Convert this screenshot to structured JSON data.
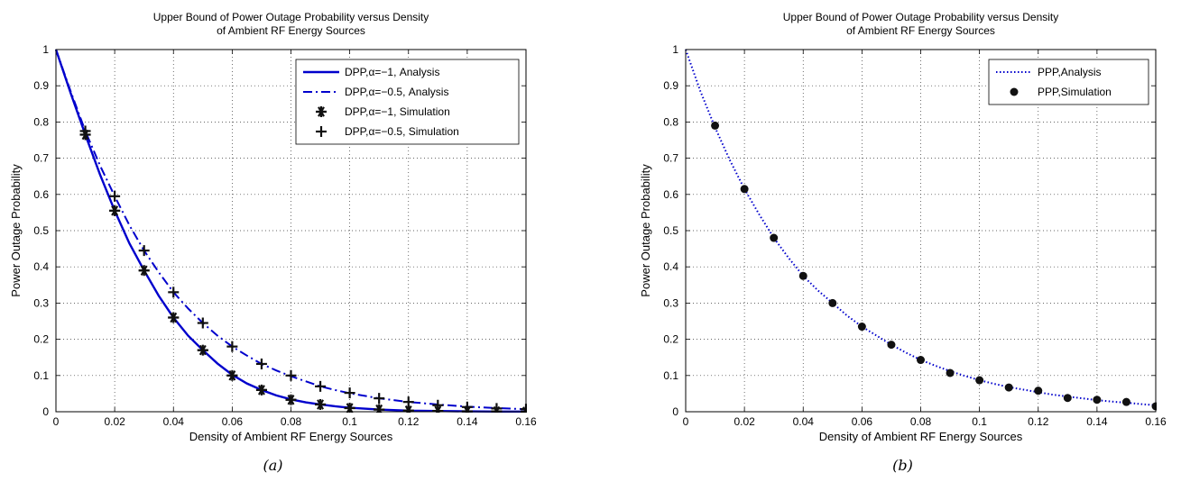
{
  "chart_data": [
    {
      "type": "line",
      "title_lines": [
        "Upper Bound of Power Outage Probability versus Density",
        "of Ambient RF Energy Sources"
      ],
      "xlabel": "Density of Ambient RF Energy Sources",
      "ylabel": "Power Outage Probability",
      "caption": "(a)",
      "xlim": [
        0,
        0.16
      ],
      "ylim": [
        0,
        1
      ],
      "xticks": [
        0,
        0.02,
        0.04,
        0.06,
        0.08,
        0.1,
        0.12,
        0.14,
        0.16
      ],
      "xtick_labels": [
        "0",
        "0.02",
        "0.04",
        "0.06",
        "0.08",
        "0.1",
        "0.12",
        "0.14",
        "0.16"
      ],
      "yticks": [
        0,
        0.1,
        0.2,
        0.3,
        0.4,
        0.5,
        0.6,
        0.7,
        0.8,
        0.9,
        1
      ],
      "ytick_labels": [
        "0",
        "0.1",
        "0.2",
        "0.3",
        "0.4",
        "0.5",
        "0.6",
        "0.7",
        "0.8",
        "0.9",
        "1"
      ],
      "grid": true,
      "legend_position": "top-right",
      "series": [
        {
          "name": "DPP,α=−1, Analysis",
          "style": "solid",
          "color": "#0000cc",
          "x": [
            0,
            0.005,
            0.01,
            0.015,
            0.02,
            0.025,
            0.03,
            0.035,
            0.04,
            0.045,
            0.05,
            0.055,
            0.06,
            0.065,
            0.07,
            0.075,
            0.08,
            0.085,
            0.09,
            0.095,
            0.1,
            0.11,
            0.12,
            0.13,
            0.14,
            0.15,
            0.16
          ],
          "y": [
            1,
            0.88,
            0.765,
            0.655,
            0.555,
            0.465,
            0.39,
            0.32,
            0.26,
            0.21,
            0.17,
            0.133,
            0.102,
            0.078,
            0.06,
            0.045,
            0.034,
            0.026,
            0.02,
            0.015,
            0.011,
            0.006,
            0.003,
            0.002,
            0.001,
            0.0005,
            0.0003
          ]
        },
        {
          "name": "DPP,α=−0.5, Analysis",
          "style": "dashdot",
          "color": "#0000cc",
          "x": [
            0,
            0.005,
            0.01,
            0.015,
            0.02,
            0.025,
            0.03,
            0.035,
            0.04,
            0.045,
            0.05,
            0.055,
            0.06,
            0.065,
            0.07,
            0.075,
            0.08,
            0.085,
            0.09,
            0.095,
            0.1,
            0.11,
            0.12,
            0.13,
            0.14,
            0.15,
            0.16
          ],
          "y": [
            1,
            0.885,
            0.775,
            0.68,
            0.595,
            0.515,
            0.445,
            0.385,
            0.33,
            0.285,
            0.245,
            0.21,
            0.18,
            0.155,
            0.132,
            0.114,
            0.098,
            0.084,
            0.07,
            0.06,
            0.051,
            0.037,
            0.027,
            0.02,
            0.014,
            0.01,
            0.007
          ]
        },
        {
          "name": "DPP,α=−1, Simulation",
          "style": "marker-asterisk",
          "color": "#111111",
          "x": [
            0.01,
            0.02,
            0.03,
            0.04,
            0.05,
            0.06,
            0.07,
            0.08,
            0.09,
            0.1,
            0.11,
            0.12,
            0.13,
            0.14,
            0.15,
            0.16
          ],
          "y": [
            0.765,
            0.555,
            0.39,
            0.26,
            0.17,
            0.1,
            0.06,
            0.033,
            0.02,
            0.01,
            0.006,
            0.003,
            0.002,
            0.001,
            0.001,
            0
          ]
        },
        {
          "name": "DPP,α=−0.5, Simulation",
          "style": "marker-plus",
          "color": "#111111",
          "x": [
            0.01,
            0.02,
            0.03,
            0.04,
            0.05,
            0.06,
            0.07,
            0.08,
            0.09,
            0.1,
            0.11,
            0.12,
            0.13,
            0.14,
            0.15,
            0.16
          ],
          "y": [
            0.775,
            0.595,
            0.445,
            0.33,
            0.245,
            0.18,
            0.132,
            0.1,
            0.07,
            0.052,
            0.037,
            0.027,
            0.018,
            0.013,
            0.009,
            0.007
          ]
        }
      ]
    },
    {
      "type": "line",
      "title_lines": [
        "Upper Bound of Power Outage Probability versus Density",
        "of Ambient RF Energy Sources"
      ],
      "xlabel": "Density of Ambient RF Energy Sources",
      "ylabel": "Power Outage Probability",
      "caption": "(b)",
      "xlim": [
        0,
        0.16
      ],
      "ylim": [
        0,
        1
      ],
      "xticks": [
        0,
        0.02,
        0.04,
        0.06,
        0.08,
        0.1,
        0.12,
        0.14,
        0.16
      ],
      "xtick_labels": [
        "0",
        "0.02",
        "0.04",
        "0.06",
        "0.08",
        "0.1",
        "0.12",
        "0.14",
        "0.16"
      ],
      "yticks": [
        0,
        0.1,
        0.2,
        0.3,
        0.4,
        0.5,
        0.6,
        0.7,
        0.8,
        0.9,
        1
      ],
      "ytick_labels": [
        "0",
        "0.1",
        "0.2",
        "0.3",
        "0.4",
        "0.5",
        "0.6",
        "0.7",
        "0.8",
        "0.9",
        "1"
      ],
      "grid": true,
      "legend_position": "top-right",
      "series": [
        {
          "name": "PPP,Analysis",
          "style": "dotted",
          "color": "#0000cc",
          "x": [
            0,
            0.005,
            0.01,
            0.015,
            0.02,
            0.025,
            0.03,
            0.035,
            0.04,
            0.045,
            0.05,
            0.055,
            0.06,
            0.065,
            0.07,
            0.075,
            0.08,
            0.085,
            0.09,
            0.095,
            0.1,
            0.105,
            0.11,
            0.115,
            0.12,
            0.125,
            0.13,
            0.135,
            0.14,
            0.145,
            0.15,
            0.155,
            0.16
          ],
          "y": [
            1,
            0.885,
            0.785,
            0.695,
            0.615,
            0.545,
            0.48,
            0.425,
            0.375,
            0.335,
            0.3,
            0.265,
            0.235,
            0.21,
            0.185,
            0.163,
            0.143,
            0.127,
            0.112,
            0.099,
            0.087,
            0.077,
            0.068,
            0.061,
            0.054,
            0.047,
            0.042,
            0.037,
            0.032,
            0.028,
            0.025,
            0.021,
            0.018
          ]
        },
        {
          "name": "PPP,Simulation",
          "style": "marker-dot",
          "color": "#111111",
          "x": [
            0.01,
            0.02,
            0.03,
            0.04,
            0.05,
            0.06,
            0.07,
            0.08,
            0.09,
            0.1,
            0.11,
            0.12,
            0.13,
            0.14,
            0.15,
            0.16
          ],
          "y": [
            0.79,
            0.615,
            0.48,
            0.375,
            0.3,
            0.235,
            0.185,
            0.143,
            0.107,
            0.087,
            0.067,
            0.058,
            0.038,
            0.033,
            0.027,
            0.015
          ]
        }
      ]
    }
  ]
}
